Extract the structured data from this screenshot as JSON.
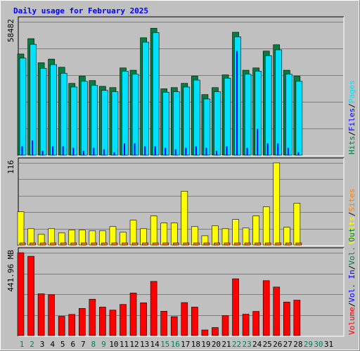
{
  "chart_data": {
    "type": "bar",
    "title": "Daily usage for February 2025",
    "categories": [
      "1",
      "2",
      "3",
      "4",
      "5",
      "6",
      "7",
      "8",
      "9",
      "10",
      "11",
      "12",
      "13",
      "14",
      "15",
      "16",
      "17",
      "18",
      "19",
      "20",
      "21",
      "22",
      "23",
      "24",
      "25",
      "26",
      "27",
      "28",
      "29",
      "30",
      "31"
    ],
    "weekend_days": [
      "1",
      "2",
      "8",
      "9",
      "15",
      "16",
      "22",
      "23",
      "29",
      "30"
    ],
    "colors": {
      "hits": "#008040",
      "files": "#0000ff",
      "pages": "#00e0ff",
      "visits": "#ffff00",
      "sites": "#ff8000",
      "kbytes": "#ff0000",
      "title": "#0000ff",
      "weekday_label": "#000000",
      "weekend_label": "#00805c"
    },
    "panels": [
      {
        "id": "hits",
        "ymax_label": "58482",
        "ymax": 58482,
        "legend": [
          {
            "text": "Hits",
            "color": "#008040"
          },
          {
            "text": "/",
            "color": "#000000"
          },
          {
            "text": "Files",
            "color": "#0000ff"
          },
          {
            "text": "/",
            "color": "#000000"
          },
          {
            "text": "Pages",
            "color": "#00e0ff"
          }
        ],
        "series": [
          {
            "name": "Hits",
            "values": [
              44350,
              51080,
              40520,
              42120,
              38550,
              31480,
              34640,
              32710,
              30180,
              29620,
              38240,
              37230,
              51460,
              55640,
              29100,
              29620,
              31480,
              34640,
              26550,
              29620,
              35200,
              53880,
              37230,
              38240,
              45630,
              48400,
              37230,
              34640,
              null,
              null,
              null
            ]
          },
          {
            "name": "Files",
            "values": [
              3850,
              6450,
              1930,
              3850,
              3850,
              3200,
              1930,
              3200,
              2570,
              1280,
              5130,
              5130,
              3850,
              3850,
              3200,
              2570,
              3200,
              3850,
              3200,
              1930,
              3850,
              45630,
              3200,
              11500,
              5130,
              5130,
              3200,
              1280,
              null,
              null,
              null
            ]
          },
          {
            "name": "Pages",
            "values": [
              43460,
              49520,
              39000,
              40600,
              36850,
              30800,
              33290,
              31470,
              29320,
              28760,
              37690,
              36390,
              50470,
              54680,
              28470,
              28760,
              30800,
              33850,
              25560,
              28760,
              34650,
              52810,
              36390,
              37690,
              44550,
              47100,
              36390,
              33290,
              null,
              null,
              null
            ]
          }
        ]
      },
      {
        "id": "visits",
        "ymax_label": "116",
        "ymax": 116,
        "legend": [
          {
            "text": "Visits",
            "color": "#ffff00"
          },
          {
            "text": "/",
            "color": "#000000"
          },
          {
            "text": "Sites",
            "color": "#ff8000"
          }
        ],
        "series": [
          {
            "name": "Visits",
            "values": [
              47,
              23,
              15,
              23,
              17,
              21,
              21,
              20,
              20,
              26,
              18,
              35,
              23,
              41,
              31,
              31,
              76,
              26,
              13,
              27,
              23,
              36,
              24,
              41,
              54,
              116,
              25,
              59,
              null,
              null,
              null
            ]
          },
          {
            "name": "Sites",
            "values": [
              2,
              2,
              2,
              2,
              2,
              2,
              2,
              2,
              2,
              2,
              2,
              2,
              2,
              2,
              2,
              2,
              2,
              2,
              2,
              2,
              2,
              2,
              2,
              2,
              2,
              3,
              2,
              2,
              null,
              null,
              null
            ]
          }
        ]
      },
      {
        "id": "kbytes",
        "ymax_label": "441.96 MB",
        "ymax": 441.96,
        "legend": [
          {
            "text": "Volume",
            "color": "#ff0000"
          },
          {
            "text": "/",
            "color": "#000000"
          },
          {
            "text": "Vol. In",
            "color": "#0000ff"
          },
          {
            "text": "/",
            "color": "#000000"
          },
          {
            "text": "Vol. Out",
            "color": "#008040"
          }
        ],
        "series": [
          {
            "name": "Volume",
            "values": [
              441.96,
              423.0,
              223.0,
              218.0,
              103.0,
              113.0,
              145.0,
              194.0,
              152.0,
              136.0,
              166.0,
              227.0,
              175.0,
              289.0,
              130.0,
              101.0,
              176.0,
              152.0,
              30.0,
              43.0,
              106.0,
              303.0,
              114.0,
              129.0,
              293.0,
              259.0,
              179.0,
              189.0,
              null,
              null,
              null
            ]
          }
        ]
      }
    ]
  }
}
